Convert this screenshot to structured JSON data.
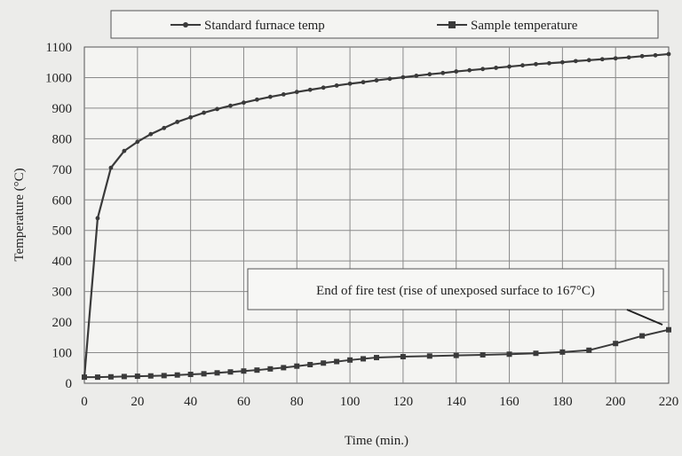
{
  "chart_data": {
    "type": "line",
    "xlabel": "Time (min.)",
    "ylabel": "Temperature (°C)",
    "xlim": [
      0,
      220
    ],
    "ylim": [
      0,
      1100
    ],
    "x_ticks": [
      0,
      20,
      40,
      60,
      80,
      100,
      120,
      140,
      160,
      180,
      200,
      220
    ],
    "y_ticks": [
      0,
      100,
      200,
      300,
      400,
      500,
      600,
      700,
      800,
      900,
      1000,
      1100
    ],
    "grid": true,
    "legend_position": "top",
    "series": [
      {
        "name": "Standard furnace temp",
        "color": "#3a3a3a",
        "marker": "dot",
        "x": [
          0,
          5,
          10,
          15,
          20,
          25,
          30,
          35,
          40,
          45,
          50,
          55,
          60,
          65,
          70,
          75,
          80,
          85,
          90,
          95,
          100,
          105,
          110,
          115,
          120,
          125,
          130,
          135,
          140,
          145,
          150,
          155,
          160,
          165,
          170,
          175,
          180,
          185,
          190,
          195,
          200,
          205,
          210,
          215,
          220
        ],
        "y": [
          20,
          540,
          705,
          760,
          790,
          815,
          835,
          855,
          870,
          885,
          897,
          908,
          918,
          928,
          937,
          945,
          953,
          960,
          967,
          974,
          980,
          985,
          991,
          996,
          1001,
          1006,
          1011,
          1015,
          1020,
          1024,
          1028,
          1032,
          1036,
          1040,
          1044,
          1047,
          1050,
          1054,
          1057,
          1060,
          1063,
          1066,
          1070,
          1073,
          1077
        ]
      },
      {
        "name": "Sample temperature",
        "color": "#3a3a3a",
        "marker": "square",
        "x": [
          0,
          5,
          10,
          15,
          20,
          25,
          30,
          35,
          40,
          45,
          50,
          55,
          60,
          65,
          70,
          75,
          80,
          85,
          90,
          95,
          100,
          105,
          110,
          120,
          130,
          140,
          150,
          160,
          170,
          180,
          190,
          200,
          210,
          220
        ],
        "y": [
          20,
          20,
          21,
          22,
          23,
          24,
          25,
          27,
          29,
          31,
          34,
          37,
          40,
          43,
          47,
          51,
          56,
          61,
          66,
          71,
          76,
          80,
          84,
          87,
          89,
          91,
          93,
          95,
          98,
          102,
          108,
          130,
          155,
          175
        ]
      }
    ],
    "annotations": [
      {
        "text": "End of fire test (rise of unexposed surface to 167°C)",
        "x": 220,
        "y": 175
      }
    ]
  }
}
